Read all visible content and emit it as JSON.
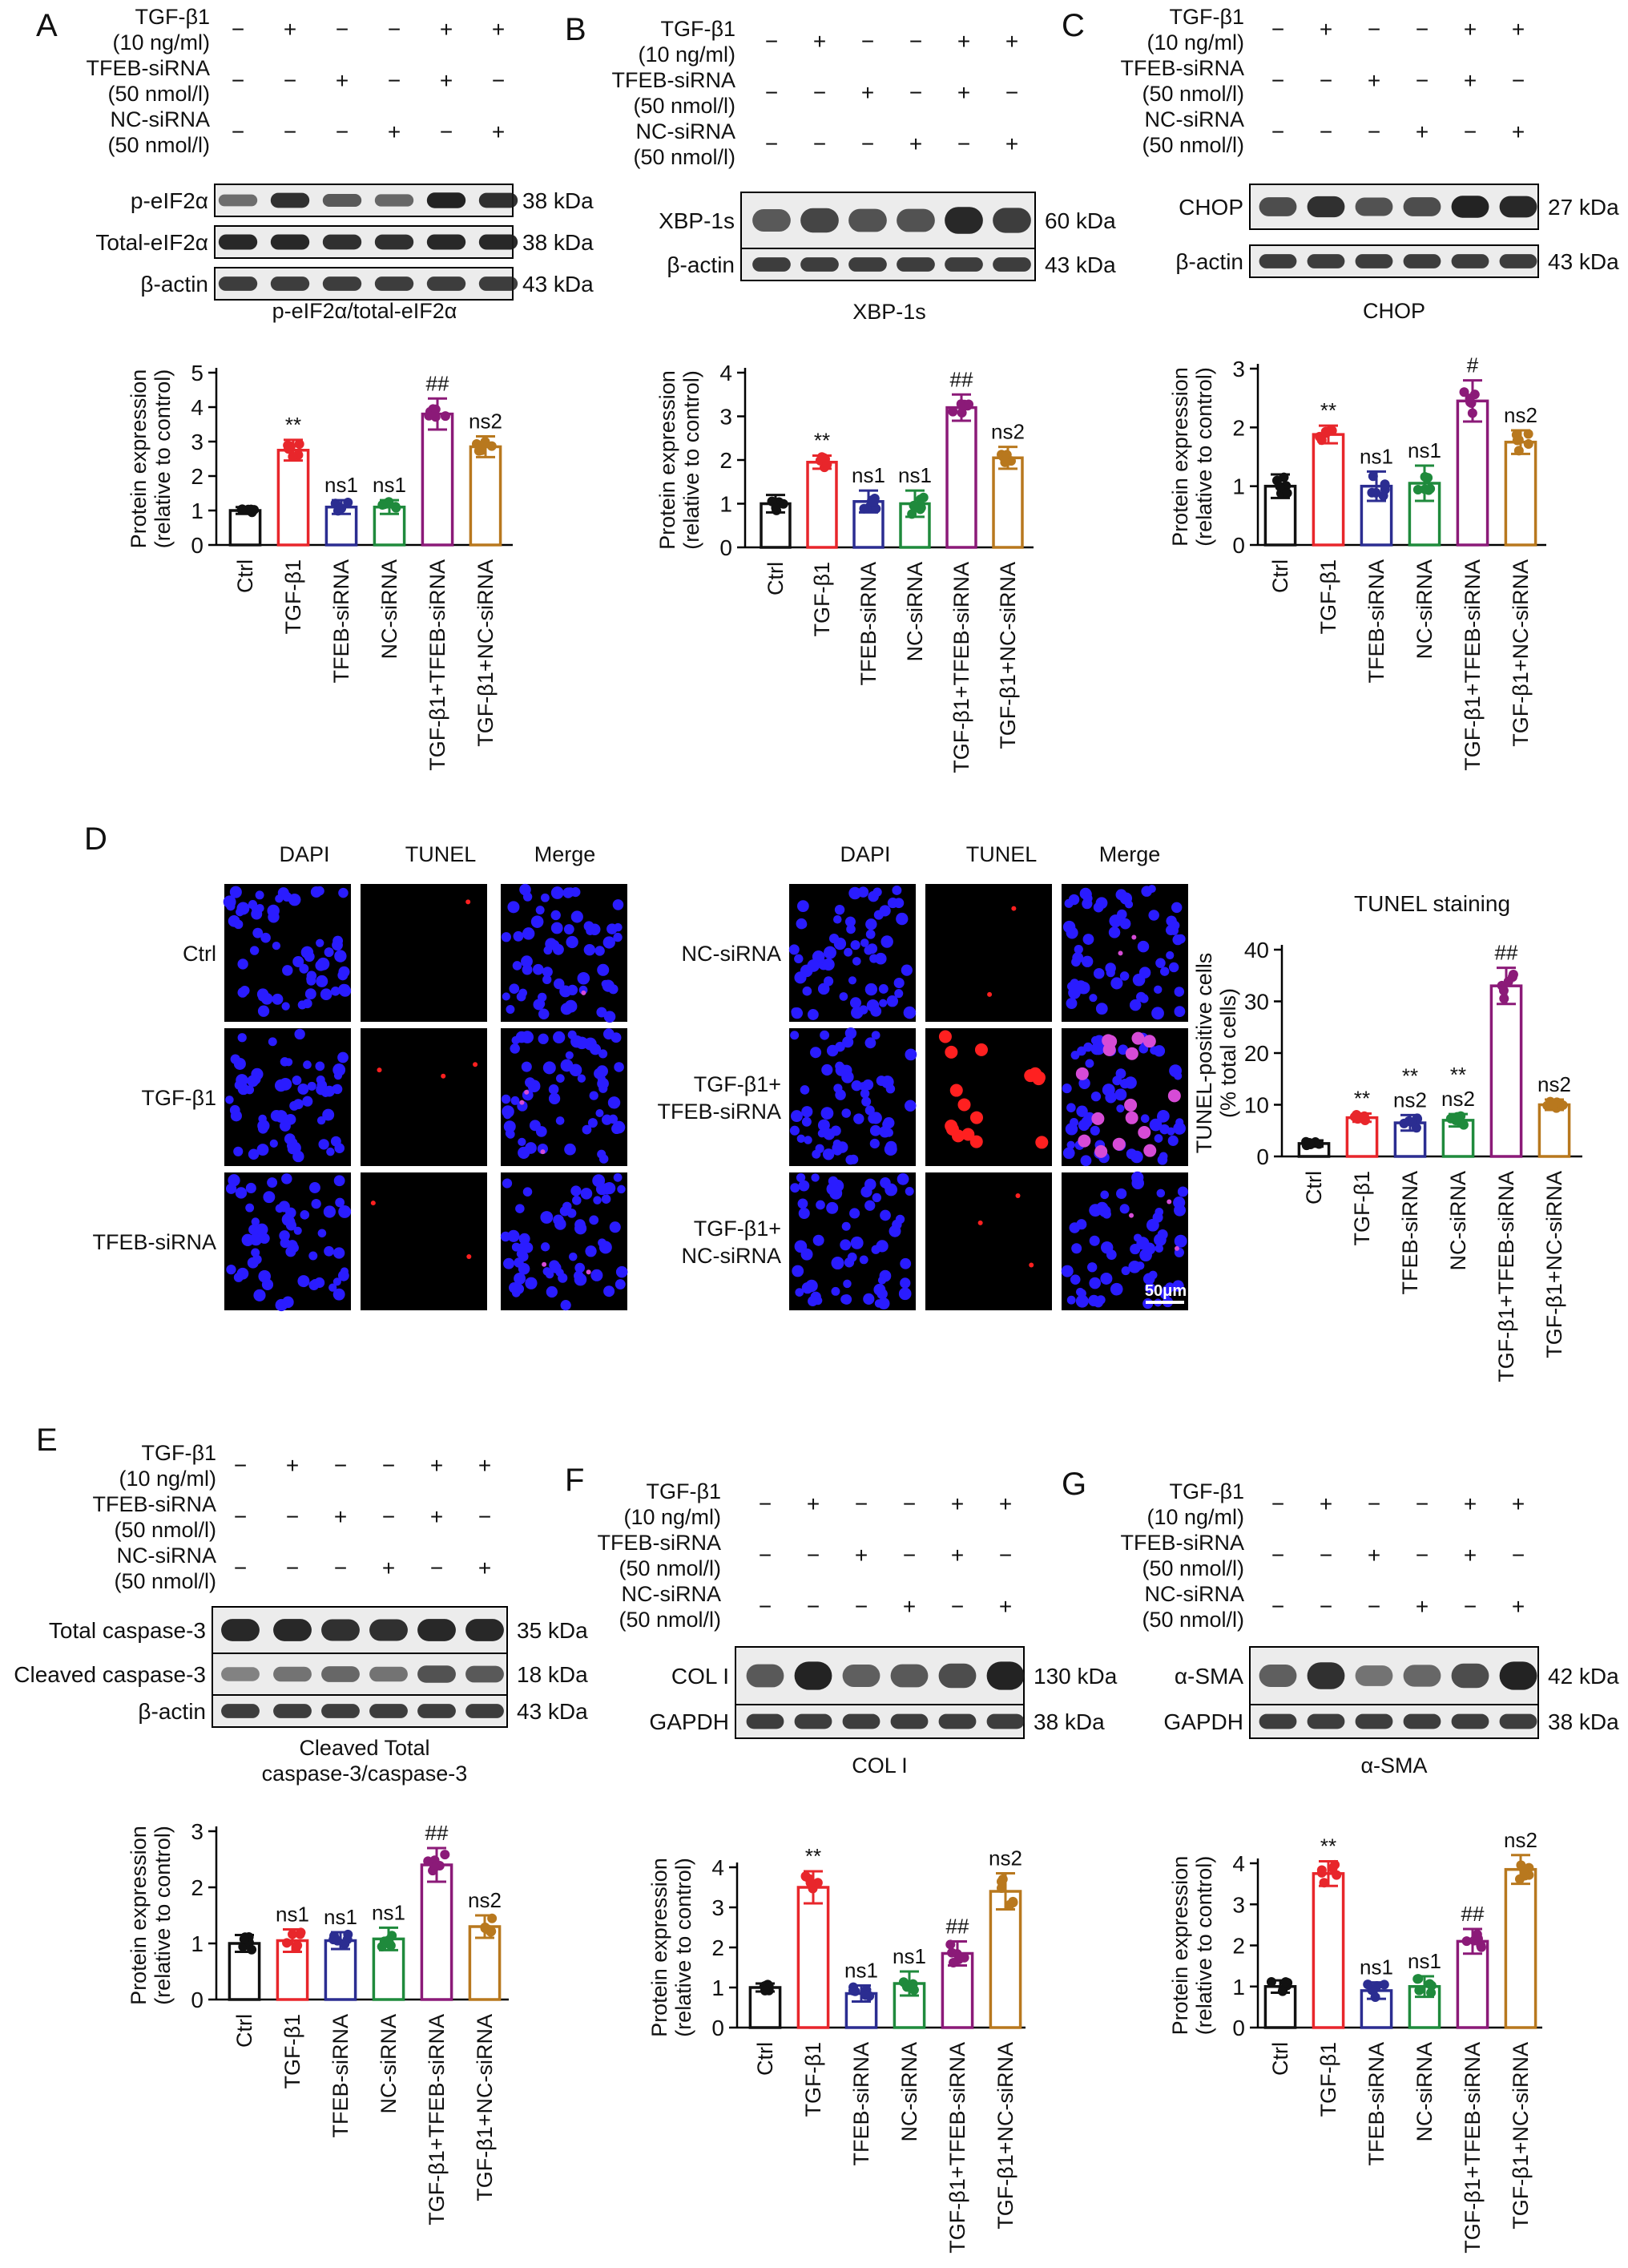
{
  "treatment_labels": [
    "TGF-β1",
    "(10 ng/ml)",
    "TFEB-siRNA",
    "(50 nmol/l)",
    "NC-siRNA",
    "(50 nmol/l)"
  ],
  "treatment_signs": [
    [
      "−",
      "+",
      "−",
      "−",
      "+",
      "+"
    ],
    [
      "−",
      "−",
      "+",
      "−",
      "+",
      "−"
    ],
    [
      "−",
      "−",
      "−",
      "+",
      "−",
      "+"
    ]
  ],
  "group_labels": [
    "Ctrl",
    "TGF-β1",
    "TFEB-siRNA",
    "NC-siRNA",
    "TGF-β1+TFEB-siRNA",
    "TGF-β1+NC-siRNA"
  ],
  "colors": {
    "groups": [
      "#111111",
      "#e8262b",
      "#2b2d91",
      "#1f8a3c",
      "#8b1a78",
      "#b8781e"
    ],
    "blot_band": "#1c1c1c",
    "blot_bg": "#ececec",
    "fluor_dapi": "#2a1cff",
    "fluor_tunel": "#ff2020",
    "fluor_merge": "#d64bd6"
  },
  "panels": [
    {
      "letter": "A",
      "blots": [
        [
          "p-eIF2α",
          "38 kDa"
        ],
        [
          "Total-eIF2α",
          "38 kDa"
        ],
        [
          "β-actin",
          "43 kDa"
        ]
      ],
      "blot_caption": "p-eIF2α/total-eIF2α",
      "ylabel": "Protein expression",
      "ylabel2": "(relative to control)"
    },
    {
      "letter": "B",
      "blots": [
        [
          "XBP-1s",
          "60 kDa"
        ],
        [
          "β-actin",
          "43 kDa"
        ]
      ],
      "blot_caption": "XBP-1s",
      "ylabel": "Protein expression",
      "ylabel2": "(relative to control)"
    },
    {
      "letter": "C",
      "blots": [
        [
          "CHOP",
          "27 kDa"
        ],
        [
          "β-actin",
          "43 kDa"
        ]
      ],
      "blot_caption": "CHOP",
      "ylabel": "Protein expression",
      "ylabel2": "(relative to control)"
    },
    {
      "letter": "D",
      "image_headers": [
        "DAPI",
        "TUNEL",
        "Merge"
      ],
      "rows_left": [
        "Ctrl",
        "TGF-β1",
        "TFEB-siRNA"
      ],
      "rows_right": [
        "NC-siRNA",
        "TGF-β1+\nTFEB-siRNA",
        "TGF-β1+\nNC-siRNA"
      ],
      "scale_bar": "50μm",
      "chart_title": "TUNEL staining",
      "ylabel": "TUNEL-positive cells",
      "ylabel2": "(% total cells)"
    },
    {
      "letter": "E",
      "blots": [
        [
          "Total caspase-3",
          "35 kDa"
        ],
        [
          "Cleaved caspase-3",
          "18 kDa"
        ],
        [
          "β-actin",
          "43 kDa"
        ]
      ],
      "blot_caption": "Cleaved        Total",
      "blot_caption2": "caspase-3/caspase-3",
      "ylabel": "Protein expression",
      "ylabel2": "(relative to control)"
    },
    {
      "letter": "F",
      "blots": [
        [
          "COL I",
          "130 kDa"
        ],
        [
          "GAPDH",
          "38 kDa"
        ]
      ],
      "blot_caption": "COL I",
      "ylabel": "Protein expression",
      "ylabel2": "(relative to control)"
    },
    {
      "letter": "G",
      "blots": [
        [
          "α-SMA",
          "42 kDa"
        ],
        [
          "GAPDH",
          "38 kDa"
        ]
      ],
      "blot_caption": "α-SMA",
      "ylabel": "Protein expression",
      "ylabel2": "(relative to control)"
    }
  ],
  "chart_data": [
    {
      "panel": "A",
      "type": "bar",
      "categories": [
        "Ctrl",
        "TGF-β1",
        "TFEB-siRNA",
        "NC-siRNA",
        "TGF-β1+TFEB-siRNA",
        "TGF-β1+NC-siRNA"
      ],
      "values": [
        1.0,
        2.75,
        1.1,
        1.1,
        3.8,
        2.85
      ],
      "errors": [
        0.1,
        0.3,
        0.2,
        0.2,
        0.45,
        0.3
      ],
      "annotations": [
        "",
        "**",
        "ns1",
        "ns1",
        "##",
        "ns2"
      ],
      "ylabel": "Protein expression (relative to control)",
      "ylim": [
        0,
        5
      ],
      "yticks": [
        0,
        1,
        2,
        3,
        4,
        5
      ]
    },
    {
      "panel": "B",
      "type": "bar",
      "categories": [
        "Ctrl",
        "TGF-β1",
        "TFEB-siRNA",
        "NC-siRNA",
        "TGF-β1+TFEB-siRNA",
        "TGF-β1+NC-siRNA"
      ],
      "values": [
        1.0,
        1.95,
        1.05,
        1.0,
        3.2,
        2.05
      ],
      "errors": [
        0.2,
        0.15,
        0.25,
        0.3,
        0.3,
        0.25
      ],
      "annotations": [
        "",
        "**",
        "ns1",
        "ns1",
        "##",
        "ns2"
      ],
      "ylabel": "Protein expression (relative to control)",
      "ylim": [
        0,
        4
      ],
      "yticks": [
        0,
        1,
        2,
        3,
        4
      ]
    },
    {
      "panel": "C",
      "type": "bar",
      "categories": [
        "Ctrl",
        "TGF-β1",
        "TFEB-siRNA",
        "NC-siRNA",
        "TGF-β1+TFEB-siRNA",
        "TGF-β1+NC-siRNA"
      ],
      "values": [
        1.0,
        1.88,
        1.0,
        1.05,
        2.45,
        1.75
      ],
      "errors": [
        0.2,
        0.15,
        0.25,
        0.3,
        0.35,
        0.2
      ],
      "annotations": [
        "",
        "**",
        "ns1",
        "ns1",
        "#",
        "ns2"
      ],
      "ylabel": "Protein expression (relative to control)",
      "ylim": [
        0,
        3
      ],
      "yticks": [
        0,
        1,
        2,
        3
      ]
    },
    {
      "panel": "D",
      "type": "bar",
      "title": "TUNEL staining",
      "categories": [
        "Ctrl",
        "TGF-β1",
        "TFEB-siRNA",
        "NC-siRNA",
        "TGF-β1+TFEB-siRNA",
        "TGF-β1+NC-siRNA"
      ],
      "values": [
        2.5,
        7.5,
        6.5,
        7.0,
        33,
        10
      ],
      "errors": [
        0.6,
        0.8,
        1.5,
        1.2,
        3.5,
        1.0
      ],
      "annotations": [
        "",
        "**",
        "**\nns2",
        "**\nns2",
        "##",
        "ns2"
      ],
      "ylabel": "TUNEL-positive cells (% total cells)",
      "ylim": [
        0,
        40
      ],
      "yticks": [
        0,
        10,
        20,
        30,
        40
      ]
    },
    {
      "panel": "E",
      "type": "bar",
      "categories": [
        "Ctrl",
        "TGF-β1",
        "TFEB-siRNA",
        "NC-siRNA",
        "TGF-β1+TFEB-siRNA",
        "TGF-β1+NC-siRNA"
      ],
      "values": [
        1.0,
        1.05,
        1.05,
        1.08,
        2.4,
        1.3
      ],
      "errors": [
        0.15,
        0.2,
        0.15,
        0.2,
        0.3,
        0.2
      ],
      "annotations": [
        "",
        "ns1",
        "ns1",
        "ns1",
        "##",
        "ns2"
      ],
      "ylabel": "Protein expression (relative to control)",
      "ylim": [
        0,
        3
      ],
      "yticks": [
        0,
        1,
        2,
        3
      ]
    },
    {
      "panel": "F",
      "type": "bar",
      "categories": [
        "Ctrl",
        "TGF-β1",
        "TFEB-siRNA",
        "NC-siRNA",
        "TGF-β1+TFEB-siRNA",
        "TGF-β1+NC-siRNA"
      ],
      "values": [
        1.0,
        3.5,
        0.85,
        1.1,
        1.85,
        3.4
      ],
      "errors": [
        0.1,
        0.4,
        0.2,
        0.3,
        0.3,
        0.45
      ],
      "annotations": [
        "",
        "**",
        "ns1",
        "ns1",
        "##",
        "ns2"
      ],
      "ylabel": "Protein expression (relative to control)",
      "ylim": [
        0,
        4
      ],
      "yticks": [
        0,
        1,
        2,
        3,
        4
      ]
    },
    {
      "panel": "G",
      "type": "bar",
      "categories": [
        "Ctrl",
        "TGF-β1",
        "TFEB-siRNA",
        "NC-siRNA",
        "TGF-β1+TFEB-siRNA",
        "TGF-β1+NC-siRNA"
      ],
      "values": [
        1.0,
        3.75,
        0.9,
        1.0,
        2.1,
        3.85
      ],
      "errors": [
        0.15,
        0.3,
        0.2,
        0.25,
        0.3,
        0.35
      ],
      "annotations": [
        "",
        "**",
        "ns1",
        "ns1",
        "##",
        "ns2"
      ],
      "ylabel": "Protein expression (relative to control)",
      "ylim": [
        0,
        4
      ],
      "yticks": [
        0,
        1,
        2,
        3,
        4
      ]
    }
  ]
}
